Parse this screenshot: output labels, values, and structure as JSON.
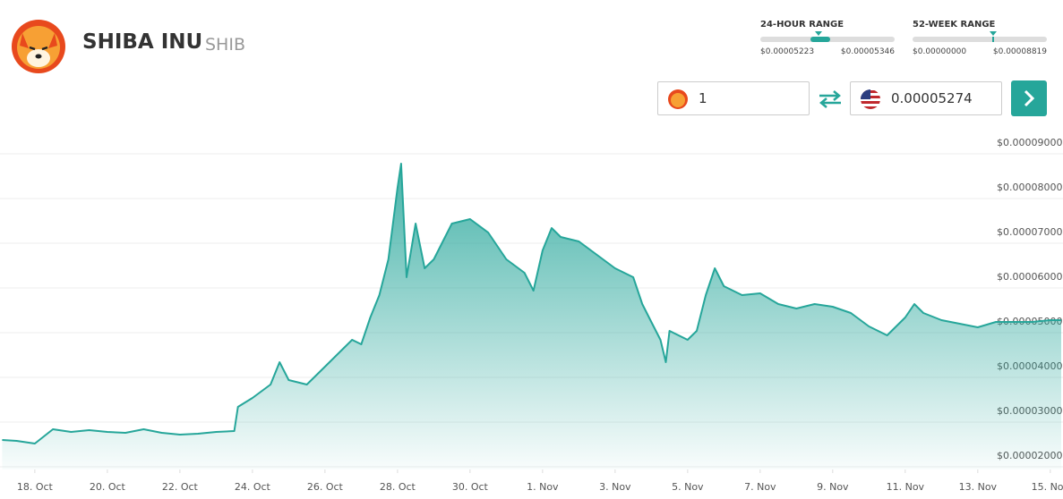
{
  "header": {
    "name": "SHIBA INU",
    "symbol": "SHIB"
  },
  "ranges": [
    {
      "label": "24-HOUR RANGE",
      "low": "$0.00005223",
      "high": "$0.00005346"
    },
    {
      "label": "52-WEEK RANGE",
      "low": "$0.00000000",
      "high": "$0.00008819"
    }
  ],
  "converter": {
    "amount": "1",
    "result": "0.00005274"
  },
  "chart_data": {
    "type": "area",
    "color": "#26a69a",
    "grid": true,
    "x": [
      17.1,
      17.5,
      18.0,
      18.5,
      19.0,
      19.5,
      20.0,
      20.5,
      21.0,
      21.5,
      22.0,
      22.5,
      23.0,
      23.5,
      23.6,
      24.0,
      24.5,
      24.75,
      25.0,
      25.5,
      26.0,
      26.5,
      26.75,
      27.0,
      27.25,
      27.5,
      27.75,
      28.0,
      28.1,
      28.25,
      28.5,
      28.75,
      29.0,
      29.25,
      29.5,
      30.0,
      30.5,
      31.0,
      31.5,
      31.75,
      32.0,
      32.25,
      32.5,
      33.0,
      33.5,
      34.0,
      34.5,
      34.75,
      35.0,
      35.25,
      35.4,
      35.5,
      36.0,
      36.25,
      36.5,
      36.75,
      37.0,
      37.5,
      38.0,
      38.5,
      39.0,
      39.5,
      40.0,
      40.5,
      41.0,
      41.5,
      42.0,
      42.25,
      42.5,
      43.0,
      43.5,
      44.0,
      44.5,
      45.0,
      45.5,
      46.0,
      46.3
    ],
    "values": [
      2.6e-05,
      2.58e-05,
      2.52e-05,
      2.84e-05,
      2.78e-05,
      2.82e-05,
      2.78e-05,
      2.76e-05,
      2.84e-05,
      2.76e-05,
      2.72e-05,
      2.74e-05,
      2.78e-05,
      2.8e-05,
      3.34e-05,
      3.54e-05,
      3.84e-05,
      4.34e-05,
      3.94e-05,
      3.84e-05,
      4.24e-05,
      4.64e-05,
      4.84e-05,
      4.74e-05,
      5.34e-05,
      5.84e-05,
      6.64e-05,
      8.24e-05,
      8.78e-05,
      6.24e-05,
      7.44e-05,
      6.44e-05,
      6.64e-05,
      7.04e-05,
      7.44e-05,
      7.54e-05,
      7.24e-05,
      6.64e-05,
      6.34e-05,
      5.94e-05,
      6.84e-05,
      7.34e-05,
      7.14e-05,
      7.04e-05,
      6.74e-05,
      6.44e-05,
      6.24e-05,
      5.64e-05,
      5.24e-05,
      4.84e-05,
      4.34e-05,
      5.04e-05,
      4.84e-05,
      5.04e-05,
      5.84e-05,
      6.44e-05,
      6.04e-05,
      5.84e-05,
      5.88e-05,
      5.64e-05,
      5.54e-05,
      5.64e-05,
      5.58e-05,
      5.44e-05,
      5.14e-05,
      4.94e-05,
      5.34e-05,
      5.64e-05,
      5.44e-05,
      5.28e-05,
      5.2e-05,
      5.12e-05,
      5.24e-05,
      5.24e-05,
      5.24e-05,
      5.28e-05,
      5.28e-05
    ],
    "xlim": [
      17.04,
      46.35
    ],
    "xticks": [
      {
        "value": 18,
        "label": "18. Oct"
      },
      {
        "value": 20,
        "label": "20. Oct"
      },
      {
        "value": 22,
        "label": "22. Oct"
      },
      {
        "value": 24,
        "label": "24. Oct"
      },
      {
        "value": 26,
        "label": "26. Oct"
      },
      {
        "value": 28,
        "label": "28. Oct"
      },
      {
        "value": 30,
        "label": "30. Oct"
      },
      {
        "value": 32,
        "label": "1. Nov"
      },
      {
        "value": 34,
        "label": "3. Nov"
      },
      {
        "value": 36,
        "label": "5. Nov"
      },
      {
        "value": 38,
        "label": "7. Nov"
      },
      {
        "value": 40,
        "label": "9. Nov"
      },
      {
        "value": 42,
        "label": "11. Nov"
      },
      {
        "value": 44,
        "label": "13. Nov"
      },
      {
        "value": 46,
        "label": "15. Nov"
      }
    ],
    "ylim": [
      1.94e-05,
      9.44e-05
    ],
    "yticks": [
      {
        "value": 2e-05,
        "label": "$0.00002000"
      },
      {
        "value": 3e-05,
        "label": "$0.00003000"
      },
      {
        "value": 4e-05,
        "label": "$0.00004000"
      },
      {
        "value": 5e-05,
        "label": "$0.00005000"
      },
      {
        "value": 6e-05,
        "label": "$0.00006000"
      },
      {
        "value": 7e-05,
        "label": "$0.00007000"
      },
      {
        "value": 8e-05,
        "label": "$0.00008000"
      },
      {
        "value": 9e-05,
        "label": "$0.00009000"
      }
    ]
  }
}
